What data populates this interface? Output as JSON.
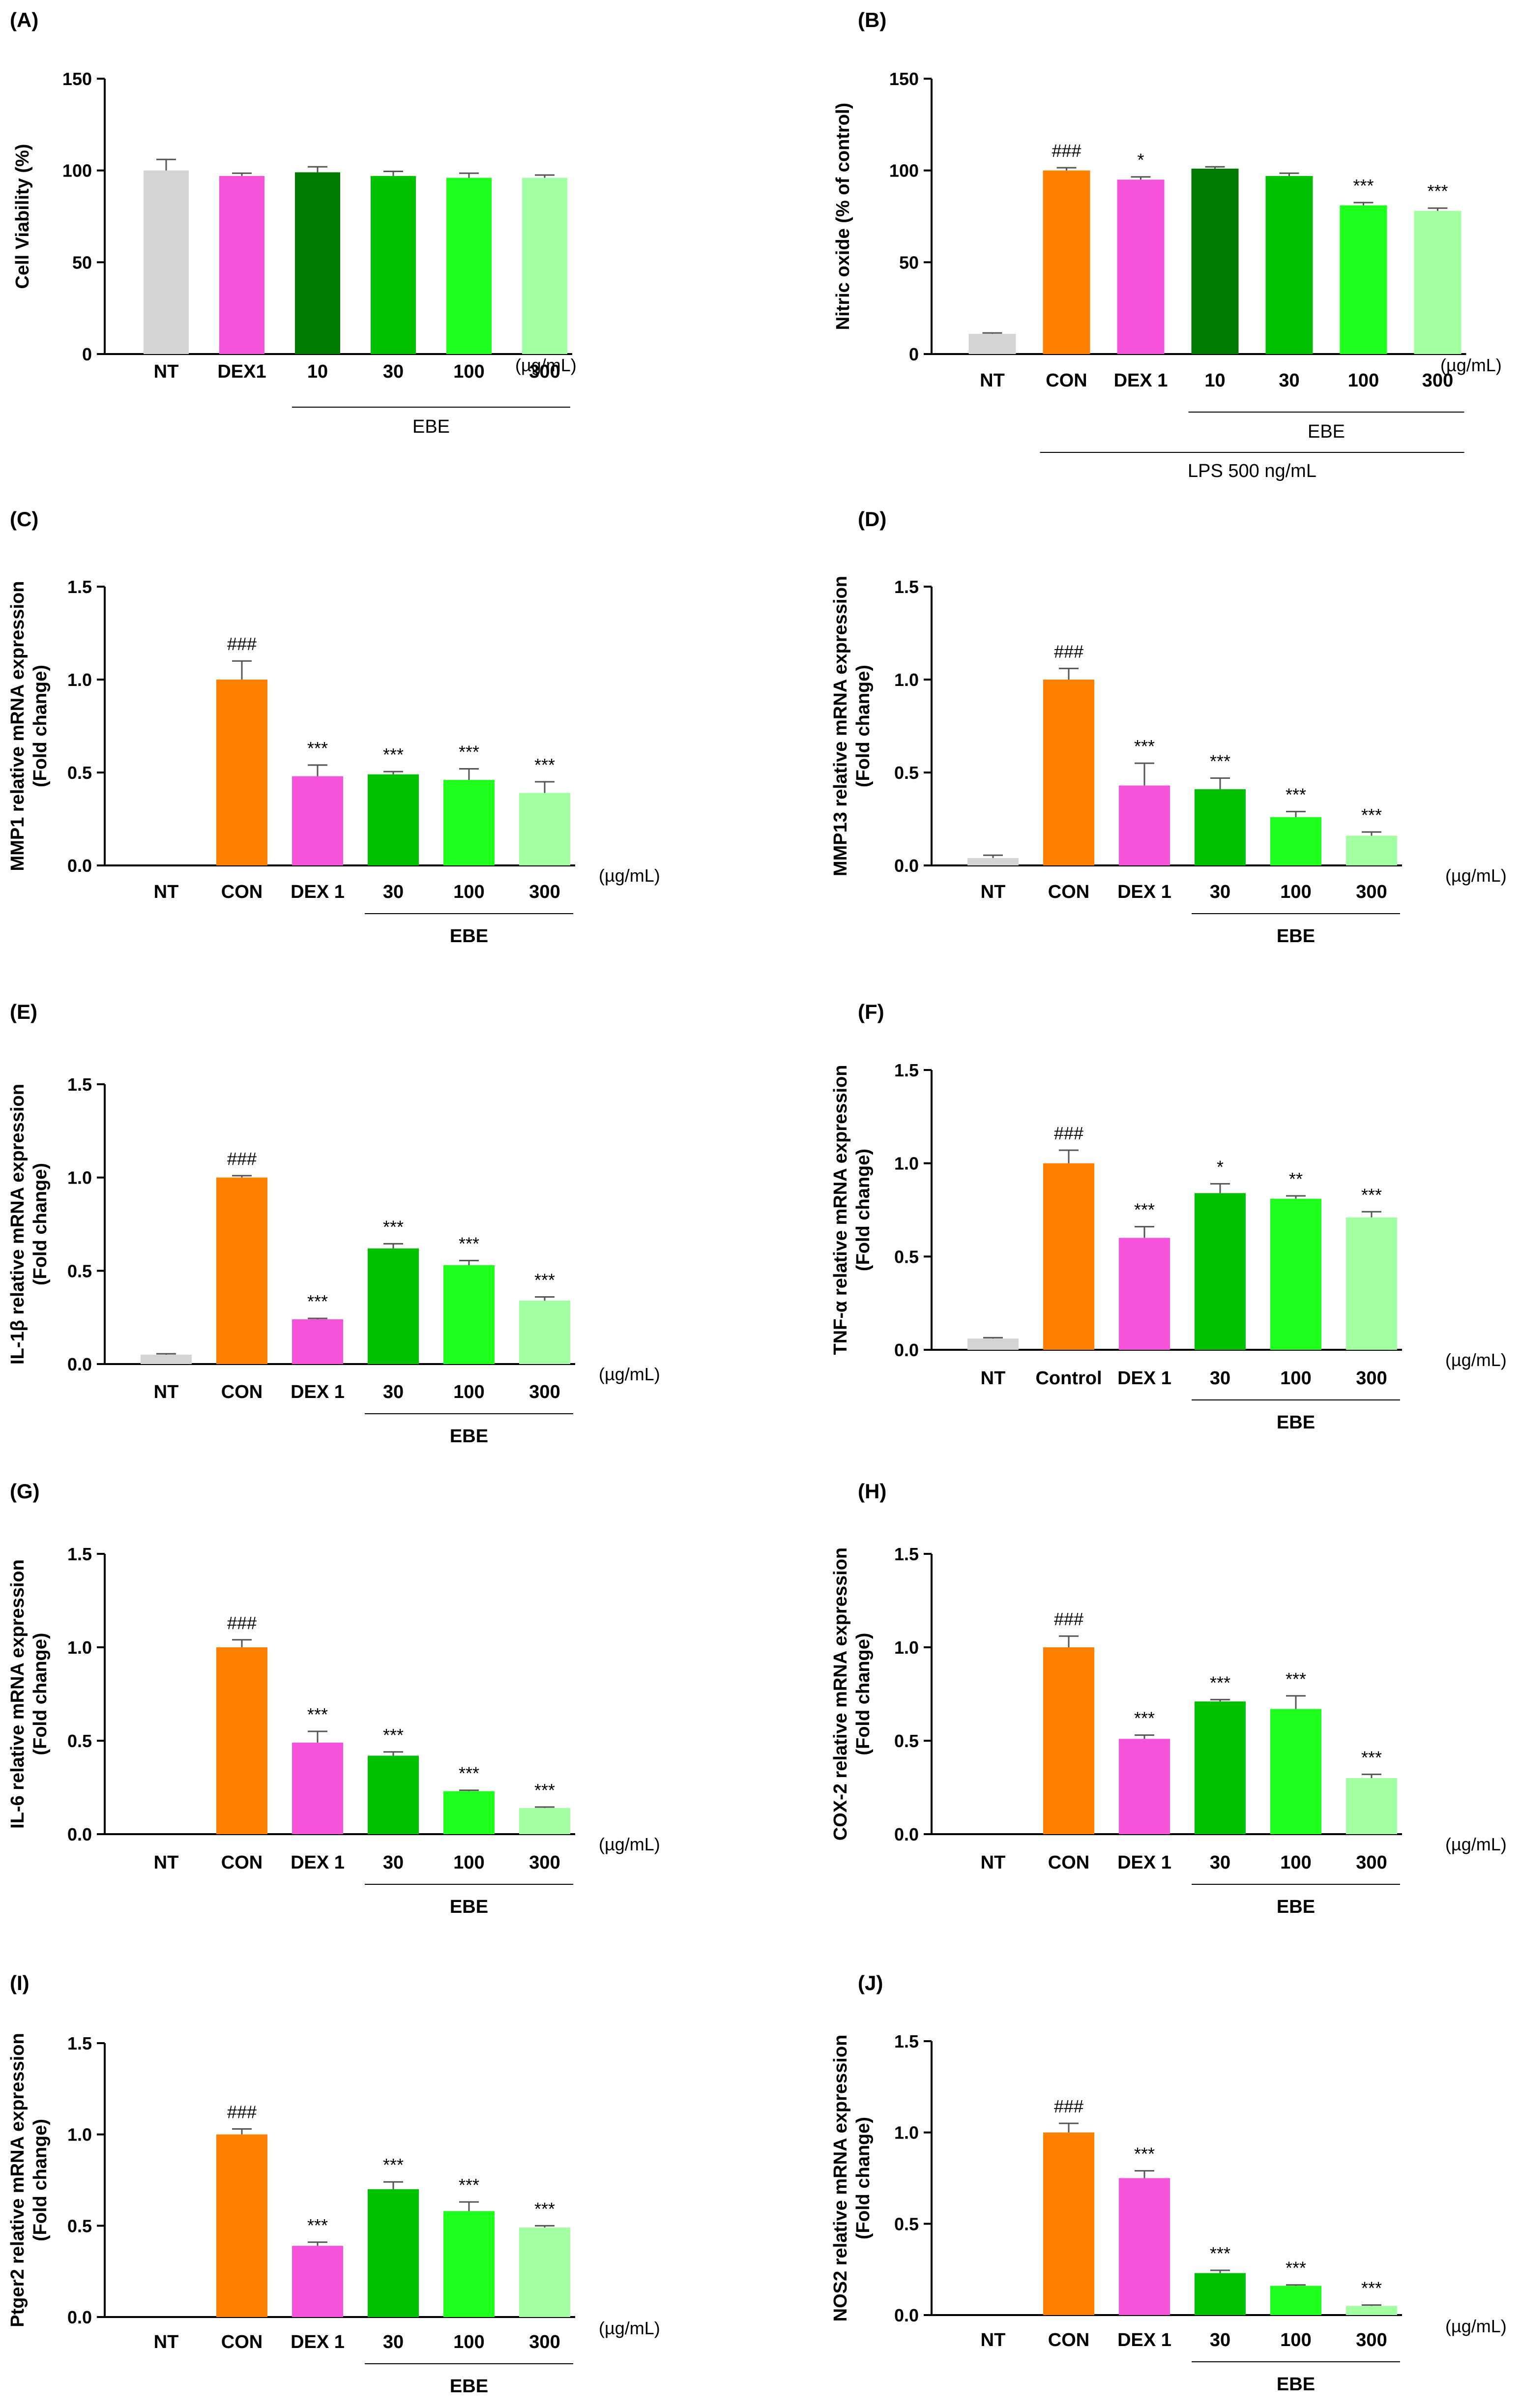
{
  "colors": {
    "NT": "#d4d4d4",
    "CON": "#ff8000",
    "DEX": "#f553d9",
    "EBE10": "#007a00",
    "EBE30": "#00c000",
    "EBE100": "#1eff1e",
    "EBE300": "#a2ffa2"
  },
  "chart_data": [
    {
      "type": "bar",
      "panel": "(A)",
      "ylabel": "Cell Viability (%)",
      "ylim": [
        0,
        150
      ],
      "yticks": [
        0,
        50,
        100,
        150
      ],
      "categories": [
        "NT",
        "DEX1",
        "10",
        "30",
        "100",
        "300"
      ],
      "color_keys": [
        "NT",
        "DEX",
        "EBE10",
        "EBE30",
        "EBE100",
        "EBE300"
      ],
      "values": [
        100,
        97,
        99,
        97,
        96,
        96
      ],
      "errors": [
        6,
        1.5,
        3,
        2.5,
        2.5,
        1.5
      ],
      "significance": [
        "",
        "",
        "",
        "",
        "",
        ""
      ],
      "unit_label": "(µg/mL)",
      "groups": [
        {
          "label": "EBE",
          "from": 2,
          "to": 5
        }
      ]
    },
    {
      "type": "bar",
      "panel": "(B)",
      "ylabel": "Nitric oxide (% of control)",
      "ylim": [
        0,
        150
      ],
      "yticks": [
        0,
        50,
        100,
        150
      ],
      "categories": [
        "NT",
        "CON",
        "DEX 1",
        "10",
        "30",
        "100",
        "300"
      ],
      "color_keys": [
        "NT",
        "CON",
        "DEX",
        "EBE10",
        "EBE30",
        "EBE100",
        "EBE300"
      ],
      "values": [
        11,
        100,
        95,
        101,
        97,
        81,
        78
      ],
      "errors": [
        0.5,
        1.5,
        1.5,
        1,
        1.5,
        1.5,
        1.5
      ],
      "significance": [
        "",
        "###",
        "*",
        "",
        "",
        "***",
        "***"
      ],
      "unit_label": "(µg/mL)",
      "groups": [
        {
          "label": "EBE",
          "from": 3,
          "to": 6
        },
        {
          "label": "LPS 500 ng/mL",
          "from": 1,
          "to": 6
        }
      ]
    },
    {
      "type": "bar",
      "panel": "(C)",
      "ylabel": "MMP1 relative mRNA expression",
      "ylabel2": "(Fold change)",
      "ylim": [
        0,
        1.5
      ],
      "yticks": [
        "0.0",
        "0.5",
        "1.0",
        "1.5"
      ],
      "categories": [
        "NT",
        "CON",
        "DEX 1",
        "30",
        "100",
        "300"
      ],
      "color_keys": [
        "NT",
        "CON",
        "DEX",
        "EBE30",
        "EBE100",
        "EBE300"
      ],
      "values": [
        0,
        1.0,
        0.48,
        0.49,
        0.46,
        0.39
      ],
      "errors": [
        0,
        0.1,
        0.06,
        0.015,
        0.06,
        0.06
      ],
      "significance": [
        "",
        "###",
        "***",
        "***",
        "***",
        "***"
      ],
      "unit_label": "(µg/mL)",
      "groups": [
        {
          "label": "EBE",
          "from": 3,
          "to": 5
        }
      ]
    },
    {
      "type": "bar",
      "panel": "(D)",
      "ylabel": "MMP13 relative mRNA expression",
      "ylabel2": "(Fold change)",
      "ylim": [
        0,
        1.5
      ],
      "yticks": [
        "0.0",
        "0.5",
        "1.0",
        "1.5"
      ],
      "categories": [
        "NT",
        "CON",
        "DEX 1",
        "30",
        "100",
        "300"
      ],
      "color_keys": [
        "NT",
        "CON",
        "DEX",
        "EBE30",
        "EBE100",
        "EBE300"
      ],
      "values": [
        0.04,
        1.0,
        0.43,
        0.41,
        0.26,
        0.16
      ],
      "errors": [
        0.015,
        0.06,
        0.12,
        0.06,
        0.03,
        0.02
      ],
      "significance": [
        "",
        "###",
        "***",
        "***",
        "***",
        "***"
      ],
      "unit_label": "(µg/mL)",
      "groups": [
        {
          "label": "EBE",
          "from": 3,
          "to": 5
        }
      ]
    },
    {
      "type": "bar",
      "panel": "(E)",
      "ylabel": "IL-1β relative mRNA expression",
      "ylabel2": "(Fold change)",
      "ylim": [
        0,
        1.5
      ],
      "yticks": [
        "0.0",
        "0.5",
        "1.0",
        "1.5"
      ],
      "categories": [
        "NT",
        "CON",
        "DEX 1",
        "30",
        "100",
        "300"
      ],
      "color_keys": [
        "NT",
        "CON",
        "DEX",
        "EBE30",
        "EBE100",
        "EBE300"
      ],
      "values": [
        0.05,
        1.0,
        0.24,
        0.62,
        0.53,
        0.34
      ],
      "errors": [
        0.005,
        0.01,
        0.005,
        0.025,
        0.025,
        0.02
      ],
      "significance": [
        "",
        "###",
        "***",
        "***",
        "***",
        "***"
      ],
      "unit_label": "(µg/mL)",
      "groups": [
        {
          "label": "EBE",
          "from": 3,
          "to": 5
        }
      ]
    },
    {
      "type": "bar",
      "panel": "(F)",
      "ylabel": "TNF-α relative mRNA expression",
      "ylabel2": "(Fold change)",
      "ylim": [
        0,
        1.5
      ],
      "yticks": [
        "0.0",
        "0.5",
        "1.0",
        "1.5"
      ],
      "categories": [
        "NT",
        "Control",
        "DEX 1",
        "30",
        "100",
        "300"
      ],
      "color_keys": [
        "NT",
        "CON",
        "DEX",
        "EBE30",
        "EBE100",
        "EBE300"
      ],
      "values": [
        0.06,
        1.0,
        0.6,
        0.84,
        0.81,
        0.71
      ],
      "errors": [
        0.005,
        0.07,
        0.06,
        0.05,
        0.015,
        0.03
      ],
      "significance": [
        "",
        "###",
        "***",
        "*",
        "**",
        "***"
      ],
      "unit_label": "(µg/mL)",
      "groups": [
        {
          "label": "EBE",
          "from": 3,
          "to": 5
        }
      ]
    },
    {
      "type": "bar",
      "panel": "(G)",
      "ylabel": "IL-6 relative mRNA expression",
      "ylabel2": "(Fold change)",
      "ylim": [
        0,
        1.5
      ],
      "yticks": [
        "0.0",
        "0.5",
        "1.0",
        "1.5"
      ],
      "categories": [
        "NT",
        "CON",
        "DEX 1",
        "30",
        "100",
        "300"
      ],
      "color_keys": [
        "NT",
        "CON",
        "DEX",
        "EBE30",
        "EBE100",
        "EBE300"
      ],
      "values": [
        0,
        1.0,
        0.49,
        0.42,
        0.23,
        0.14
      ],
      "errors": [
        0,
        0.04,
        0.06,
        0.02,
        0.005,
        0.005
      ],
      "significance": [
        "",
        "###",
        "***",
        "***",
        "***",
        "***"
      ],
      "unit_label": "(µg/mL)",
      "groups": [
        {
          "label": "EBE",
          "from": 3,
          "to": 5
        }
      ]
    },
    {
      "type": "bar",
      "panel": "(H)",
      "ylabel": "COX-2 relative mRNA expression",
      "ylabel2": "(Fold change)",
      "ylim": [
        0,
        1.5
      ],
      "yticks": [
        "0.0",
        "0.5",
        "1.0",
        "1.5"
      ],
      "categories": [
        "NT",
        "CON",
        "DEX 1",
        "30",
        "100",
        "300"
      ],
      "color_keys": [
        "NT",
        "CON",
        "DEX",
        "EBE30",
        "EBE100",
        "EBE300"
      ],
      "values": [
        0,
        1.0,
        0.51,
        0.71,
        0.67,
        0.3
      ],
      "errors": [
        0,
        0.06,
        0.02,
        0.01,
        0.07,
        0.02
      ],
      "significance": [
        "",
        "###",
        "***",
        "***",
        "***",
        "***"
      ],
      "unit_label": "(µg/mL)",
      "groups": [
        {
          "label": "EBE",
          "from": 3,
          "to": 5
        }
      ]
    },
    {
      "type": "bar",
      "panel": "(I)",
      "ylabel": "Ptger2 relative mRNA expression",
      "ylabel2": "(Fold change)",
      "ylim": [
        0,
        1.5
      ],
      "yticks": [
        "0.0",
        "0.5",
        "1.0",
        "1.5"
      ],
      "categories": [
        "NT",
        "CON",
        "DEX 1",
        "30",
        "100",
        "300"
      ],
      "color_keys": [
        "NT",
        "CON",
        "DEX",
        "EBE30",
        "EBE100",
        "EBE300"
      ],
      "values": [
        0,
        1.0,
        0.39,
        0.7,
        0.58,
        0.49
      ],
      "errors": [
        0,
        0.03,
        0.02,
        0.04,
        0.05,
        0.01
      ],
      "significance": [
        "",
        "###",
        "***",
        "***",
        "***",
        "***"
      ],
      "unit_label": "(µg/mL)",
      "groups": [
        {
          "label": "EBE",
          "from": 3,
          "to": 5
        }
      ]
    },
    {
      "type": "bar",
      "panel": "(J)",
      "ylabel": "NOS2 relative mRNA expression",
      "ylabel2": "(Fold change)",
      "ylim": [
        0,
        1.5
      ],
      "yticks": [
        "0.0",
        "0.5",
        "1.0",
        "1.5"
      ],
      "categories": [
        "NT",
        "CON",
        "DEX 1",
        "30",
        "100",
        "300"
      ],
      "color_keys": [
        "NT",
        "CON",
        "DEX",
        "EBE30",
        "EBE100",
        "EBE300"
      ],
      "values": [
        0,
        1.0,
        0.75,
        0.23,
        0.16,
        0.05
      ],
      "errors": [
        0,
        0.05,
        0.04,
        0.015,
        0.005,
        0.005
      ],
      "significance": [
        "",
        "###",
        "***",
        "***",
        "***",
        "***"
      ],
      "unit_label": "(µg/mL)",
      "groups": [
        {
          "label": "EBE",
          "from": 3,
          "to": 5
        }
      ]
    }
  ]
}
